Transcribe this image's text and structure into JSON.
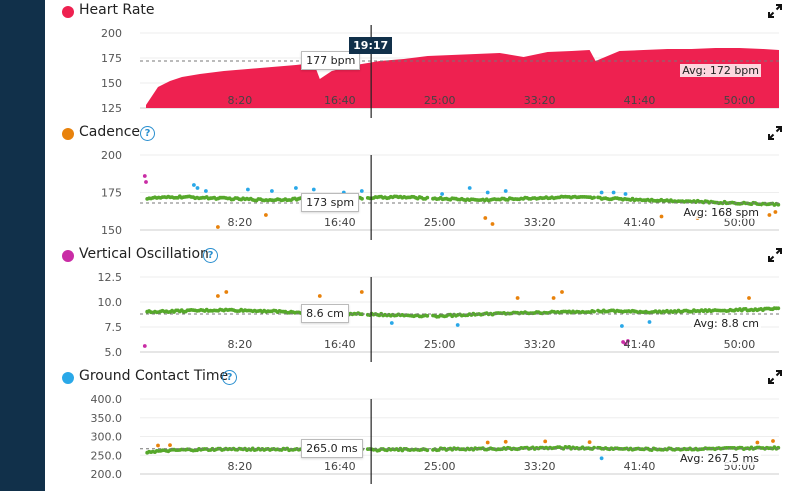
{
  "cursor": {
    "time": "19:17",
    "minutes": 19.28
  },
  "icons": {
    "expand": "expand-icon",
    "help": "help-icon"
  },
  "chart_data": [
    {
      "type": "area",
      "title": "Heart Rate",
      "color": "#ee2150",
      "help": false,
      "unit": "bpm",
      "ylim": [
        125,
        200
      ],
      "yticks": [
        "125",
        "150",
        "175",
        "200"
      ],
      "xlim": [
        0,
        53.3
      ],
      "xticks": [
        "8:20",
        "16:40",
        "25:00",
        "33:20",
        "41:40",
        "50:00"
      ],
      "xtick_minutes": [
        8.333,
        16.667,
        25,
        33.333,
        41.667,
        50
      ],
      "avg": 172,
      "avg_label": "Avg: 172 bpm",
      "cursor_value": "177 bpm",
      "x": [
        0.5,
        1.5,
        2.5,
        3.5,
        5,
        7,
        9,
        11,
        13,
        14.5,
        15,
        16,
        18,
        20,
        22,
        24,
        26,
        28,
        30,
        32,
        34,
        36,
        37.5,
        38,
        40,
        42,
        44,
        46,
        48,
        50,
        52,
        53.3
      ],
      "y": [
        128,
        146,
        152,
        156,
        159,
        162,
        164,
        166,
        168,
        170,
        154,
        162,
        168,
        172,
        174,
        177,
        178,
        179,
        180,
        176,
        181,
        182,
        183,
        172,
        182,
        183,
        184,
        184,
        185,
        185,
        184,
        183
      ]
    },
    {
      "type": "scatter",
      "title": "Cadence",
      "color": "#e8820c",
      "help": true,
      "unit": "spm",
      "ylim": [
        150,
        200
      ],
      "yticks": [
        "150",
        "175",
        "200"
      ],
      "xlim": [
        0,
        53.3
      ],
      "xticks": [
        "8:20",
        "16:40",
        "25:00",
        "33:20",
        "41:40",
        "50:00"
      ],
      "xtick_minutes": [
        8.333,
        16.667,
        25,
        33.333,
        41.667,
        50
      ],
      "avg": 168,
      "avg_label": "Avg: 168 spm",
      "cursor_value": "173 spm",
      "base": [
        171,
        172,
        171,
        170,
        171,
        171,
        172,
        171,
        170,
        171,
        172,
        171,
        170,
        169,
        168,
        167
      ],
      "points": [
        {
          "x": 0.4,
          "y": 186,
          "c": "purple"
        },
        {
          "x": 0.5,
          "y": 182,
          "c": "purple"
        },
        {
          "x": 4.5,
          "y": 180,
          "c": "blue"
        },
        {
          "x": 4.8,
          "y": 178,
          "c": "blue"
        },
        {
          "x": 5.5,
          "y": 176,
          "c": "blue"
        },
        {
          "x": 9,
          "y": 177,
          "c": "blue"
        },
        {
          "x": 11,
          "y": 176,
          "c": "blue"
        },
        {
          "x": 13,
          "y": 178,
          "c": "blue"
        },
        {
          "x": 14.5,
          "y": 177,
          "c": "blue"
        },
        {
          "x": 17,
          "y": 175,
          "c": "blue"
        },
        {
          "x": 18.5,
          "y": 176,
          "c": "blue"
        },
        {
          "x": 6.5,
          "y": 152,
          "c": "orange"
        },
        {
          "x": 10.5,
          "y": 160,
          "c": "orange"
        },
        {
          "x": 25.2,
          "y": 174,
          "c": "blue"
        },
        {
          "x": 27.5,
          "y": 178,
          "c": "blue"
        },
        {
          "x": 29,
          "y": 175,
          "c": "blue"
        },
        {
          "x": 30.5,
          "y": 176,
          "c": "blue"
        },
        {
          "x": 28.8,
          "y": 158,
          "c": "orange"
        },
        {
          "x": 29.4,
          "y": 154,
          "c": "orange"
        },
        {
          "x": 38.5,
          "y": 175,
          "c": "blue"
        },
        {
          "x": 39.5,
          "y": 175,
          "c": "blue"
        },
        {
          "x": 40.5,
          "y": 174,
          "c": "blue"
        },
        {
          "x": 43.5,
          "y": 159,
          "c": "orange"
        },
        {
          "x": 46.5,
          "y": 158,
          "c": "orange"
        },
        {
          "x": 52.5,
          "y": 160,
          "c": "orange"
        },
        {
          "x": 53,
          "y": 162,
          "c": "orange"
        }
      ]
    },
    {
      "type": "scatter",
      "title": "Vertical Oscillation",
      "color": "#c92ca5",
      "help": true,
      "unit": "cm",
      "ylim": [
        5,
        12.5
      ],
      "yticks": [
        "5.0",
        "7.5",
        "10.0",
        "12.5"
      ],
      "xlim": [
        0,
        53.3
      ],
      "xticks": [
        "8:20",
        "16:40",
        "25:00",
        "33:20",
        "41:40",
        "50:00"
      ],
      "xtick_minutes": [
        8.333,
        16.667,
        25,
        33.333,
        41.667,
        50
      ],
      "avg": 8.8,
      "avg_label": "Avg: 8.8 cm",
      "cursor_value": "8.6 cm",
      "base": [
        9.0,
        9.1,
        9.2,
        9.1,
        8.9,
        8.8,
        8.7,
        8.6,
        8.8,
        8.9,
        9.0,
        9.1,
        9.0,
        9.1,
        9.2,
        9.3
      ],
      "points": [
        {
          "x": 0.4,
          "y": 5.6,
          "c": "purple"
        },
        {
          "x": 6.5,
          "y": 10.6,
          "c": "orange"
        },
        {
          "x": 7.2,
          "y": 11.0,
          "c": "orange"
        },
        {
          "x": 15,
          "y": 10.6,
          "c": "orange"
        },
        {
          "x": 18.5,
          "y": 11.0,
          "c": "orange"
        },
        {
          "x": 21,
          "y": 7.9,
          "c": "blue"
        },
        {
          "x": 31.5,
          "y": 10.4,
          "c": "orange"
        },
        {
          "x": 34.5,
          "y": 10.4,
          "c": "orange"
        },
        {
          "x": 35.2,
          "y": 11.0,
          "c": "orange"
        },
        {
          "x": 40.2,
          "y": 7.6,
          "c": "blue"
        },
        {
          "x": 40.3,
          "y": 6.0,
          "c": "purple"
        },
        {
          "x": 40.5,
          "y": 5.8,
          "c": "purple"
        },
        {
          "x": 40.7,
          "y": 6.1,
          "c": "purple"
        },
        {
          "x": 42.5,
          "y": 8.0,
          "c": "blue"
        },
        {
          "x": 50.8,
          "y": 10.4,
          "c": "orange"
        },
        {
          "x": 26.5,
          "y": 7.7,
          "c": "blue"
        }
      ]
    },
    {
      "type": "scatter",
      "title": "Ground Contact Time",
      "color": "#2aa8e8",
      "help": true,
      "unit": "ms",
      "ylim": [
        200,
        400
      ],
      "yticks": [
        "200.0",
        "250.0",
        "300.0",
        "350.0",
        "400.0"
      ],
      "xlim": [
        0,
        53.3
      ],
      "xticks": [
        "8:20",
        "16:40",
        "25:00",
        "33:20",
        "41:40",
        "50:00"
      ],
      "xtick_minutes": [
        8.333,
        16.667,
        25,
        33.333,
        41.667,
        50
      ],
      "avg": 267.5,
      "avg_label": "Avg: 267.5 ms",
      "cursor_value": "265.0 ms",
      "base": [
        258,
        264,
        266,
        266,
        265,
        264,
        265,
        266,
        267,
        268,
        270,
        268,
        266,
        267,
        268,
        270
      ],
      "points": [
        {
          "x": 1.5,
          "y": 276,
          "c": "orange"
        },
        {
          "x": 2.5,
          "y": 277,
          "c": "orange"
        },
        {
          "x": 14.6,
          "y": 280,
          "c": "orange"
        },
        {
          "x": 29,
          "y": 284,
          "c": "orange"
        },
        {
          "x": 30.5,
          "y": 286,
          "c": "orange"
        },
        {
          "x": 33.8,
          "y": 287,
          "c": "orange"
        },
        {
          "x": 37.5,
          "y": 285,
          "c": "orange"
        },
        {
          "x": 38.5,
          "y": 242,
          "c": "blue"
        },
        {
          "x": 51.5,
          "y": 284,
          "c": "orange"
        },
        {
          "x": 52.8,
          "y": 288,
          "c": "orange"
        }
      ]
    }
  ]
}
